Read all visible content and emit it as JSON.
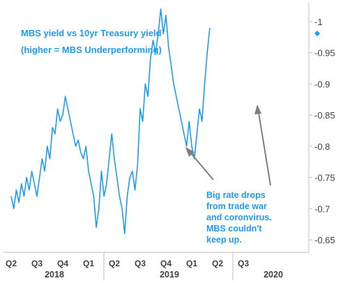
{
  "chart_data": {
    "type": "line",
    "title": "MBS yield vs 10yr Treasury yield",
    "subtitle": "(higher = MBS Underperforming)",
    "ylabel": "",
    "xlabel": "",
    "y_axis_position": "right",
    "y_inverted": true,
    "ylim": [
      -0.63,
      -1.03
    ],
    "y_ticks": [
      -0.65,
      -0.7,
      -0.75,
      -0.8,
      -0.85,
      -0.9,
      -0.95,
      -1
    ],
    "y_tick_labels": [
      "-0.65",
      "-0.7",
      "-0.75",
      "-0.8",
      "-0.85",
      "-0.9",
      "-0.95",
      "-1"
    ],
    "x_quarters": [
      "Q2",
      "Q3",
      "Q4",
      "Q1",
      "Q2",
      "Q3",
      "Q4",
      "Q1",
      "Q2",
      "Q3"
    ],
    "x_years": [
      "2018",
      "2019",
      "2020"
    ],
    "grid": false,
    "annotation": {
      "lines": [
        "Big rate drops",
        "from trade war",
        "and coronvirus.",
        "MBS couldn't",
        "keep up."
      ]
    },
    "series": [
      {
        "color": "#1f9bf0",
        "x": [
          0,
          0.1,
          0.2,
          0.3,
          0.4,
          0.5,
          0.6,
          0.7,
          0.8,
          0.9,
          1.0,
          1.1,
          1.2,
          1.3,
          1.4,
          1.5,
          1.6,
          1.7,
          1.8,
          1.9,
          2.0,
          2.1,
          2.2,
          2.3,
          2.4,
          2.5,
          2.6,
          2.7,
          2.8,
          2.9,
          3.0,
          3.1,
          3.2,
          3.3,
          3.4,
          3.5,
          3.6,
          3.7,
          3.8,
          3.9,
          4.0,
          4.1,
          4.2,
          4.3,
          4.4,
          4.5,
          4.6,
          4.7,
          4.8,
          4.9,
          5.0,
          5.1,
          5.2,
          5.3,
          5.4,
          5.5,
          5.6,
          5.7,
          5.8,
          5.9,
          6.0,
          6.1,
          6.2,
          6.3,
          6.4,
          6.5,
          6.6,
          6.7,
          6.8,
          6.9,
          7.0,
          7.1,
          7.2,
          7.3,
          7.4,
          7.5,
          7.6,
          7.7
        ],
        "values": [
          -0.72,
          -0.7,
          -0.73,
          -0.71,
          -0.74,
          -0.72,
          -0.75,
          -0.73,
          -0.76,
          -0.74,
          -0.72,
          -0.75,
          -0.78,
          -0.76,
          -0.8,
          -0.78,
          -0.83,
          -0.82,
          -0.86,
          -0.84,
          -0.85,
          -0.88,
          -0.86,
          -0.84,
          -0.82,
          -0.8,
          -0.81,
          -0.79,
          -0.78,
          -0.8,
          -0.76,
          -0.74,
          -0.72,
          -0.67,
          -0.7,
          -0.76,
          -0.72,
          -0.74,
          -0.78,
          -0.82,
          -0.78,
          -0.75,
          -0.72,
          -0.7,
          -0.66,
          -0.72,
          -0.75,
          -0.76,
          -0.73,
          -0.77,
          -0.86,
          -0.84,
          -0.9,
          -0.88,
          -0.94,
          -0.97,
          -0.95,
          -0.98,
          -1.02,
          -0.98,
          -1.01,
          -0.96,
          -0.93,
          -0.9,
          -0.88,
          -0.86,
          -0.84,
          -0.82,
          -0.8,
          -0.84,
          -0.8,
          -0.78,
          -0.82,
          -0.86,
          -0.84,
          -0.9,
          -0.95,
          -0.99
        ]
      }
    ]
  }
}
